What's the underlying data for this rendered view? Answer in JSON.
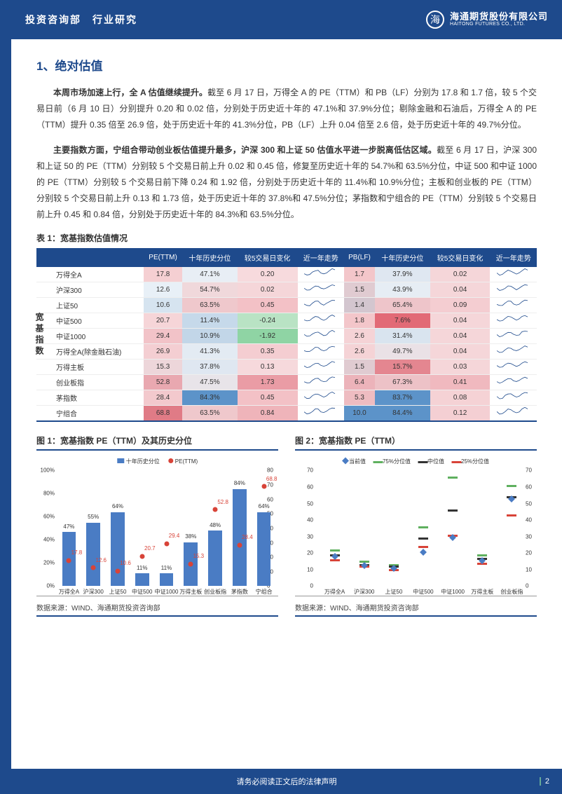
{
  "header": {
    "left": "投资咨询部　行业研究",
    "company_zh": "海通期货股份有限公司",
    "company_en": "HAITONG FUTURES CO., LTD."
  },
  "title": "1、绝对估值",
  "p1": {
    "bold": "本周市场加速上行，全 A 估值继续提升。",
    "rest": "截至 6 月 17 日，万得全 A 的 PE（TTM）和 PB（LF）分别为 17.8 和 1.7 倍，较 5 个交易日前（6 月 10 日）分别提升 0.20 和 0.02 倍，分别处于历史近十年的 47.1%和 37.9%分位；剔除金融和石油后，万得全 A 的 PE（TTM）提升 0.35 倍至 26.9 倍，处于历史近十年的 41.3%分位，PB（LF）上升 0.04 倍至 2.6 倍，处于历史近十年的 49.7%分位。"
  },
  "p2": {
    "bold": "主要指数方面，宁组合带动创业板估值提升最多，沪深 300 和上证 50 估值水平进一步脱离低估区域。",
    "rest": "截至 6 月 17 日，沪深 300 和上证 50 的 PE（TTM）分别较 5 个交易日前上升 0.02 和 0.45 倍，修复至历史近十年的 54.7%和 63.5%分位，中证 500 和中证 1000 的 PE（TTM）分别较 5 个交易日前下降 0.24 和 1.92 倍，分别处于历史近十年的 11.4%和 10.9%分位；主板和创业板的 PE（TTM）分别较 5 个交易日前上升 0.13 和 1.73 倍，处于历史近十年的 37.8%和 47.5%分位；茅指数和宁组合的 PE（TTM）分别较 5 个交易日前上升 0.45 和 0.84 倍，分别处于历史近十年的 84.3%和 63.5%分位。"
  },
  "tableTitle": "表 1：宽基指数估值情况",
  "sideLabel": "宽基指数",
  "cols": [
    "",
    "PE(TTM)",
    "十年历史分位",
    "较5交易日变化",
    "近一年走势",
    "PB(LF)",
    "十年历史分位",
    "较5交易日变化",
    "近一年走势"
  ],
  "rows": [
    {
      "name": "万得全A",
      "pe": "17.8",
      "pe_c": "#f5cfd2",
      "pr": "47.1%",
      "pr_c": "#e8eef5",
      "dpe": "0.20",
      "dpe_c": "#f7dadd",
      "pb": "1.7",
      "pb_c": "#f3c6ca",
      "pbr": "37.9%",
      "pbr_c": "#dfe7f1",
      "dpb": "0.02",
      "dpb_c": "#f5d6d9"
    },
    {
      "name": "沪深300",
      "pe": "12.6",
      "pe_c": "#e8f0f7",
      "pr": "54.7%",
      "pr_c": "#f0d8db",
      "dpe": "0.02",
      "dpe_c": "#f5d6d9",
      "pb": "1.5",
      "pb_c": "#e0cbd1",
      "pbr": "43.9%",
      "pbr_c": "#e6edf4",
      "dpb": "0.04",
      "dpb_c": "#f5d6d9"
    },
    {
      "name": "上证50",
      "pe": "10.6",
      "pe_c": "#d6e4f0",
      "pr": "63.5%",
      "pr_c": "#efc8cc",
      "dpe": "0.45",
      "dpe_c": "#f3c1c6",
      "pb": "1.4",
      "pb_c": "#d3c6cf",
      "pbr": "65.4%",
      "pbr_c": "#eec5ca",
      "dpb": "0.09",
      "dpb_c": "#f4cdd1"
    },
    {
      "name": "中证500",
      "pe": "20.7",
      "pe_c": "#f6d5d8",
      "pr": "11.4%",
      "pr_c": "#c6d9ea",
      "dpe": "-0.24",
      "dpe_c": "#b9e3c4",
      "pb": "1.8",
      "pb_c": "#f3c6ca",
      "pbr": "7.6%",
      "pbr_c": "#e26a76",
      "dpb": "0.04",
      "dpb_c": "#f5d6d9"
    },
    {
      "name": "中证1000",
      "pe": "29.4",
      "pe_c": "#f2c3c8",
      "pr": "10.9%",
      "pr_c": "#c2d6e8",
      "dpe": "-1.92",
      "dpe_c": "#8fd4a4",
      "pb": "2.6",
      "pb_c": "#f5d3d6",
      "pbr": "31.4%",
      "pbr_c": "#d9e4ef",
      "dpb": "0.04",
      "dpb_c": "#f5d6d9"
    },
    {
      "name": "万得全A(除金融石油)",
      "pe": "26.9",
      "pe_c": "#f4ced2",
      "pr": "41.3%",
      "pr_c": "#e3ebf3",
      "dpe": "0.35",
      "dpe_c": "#f4cdd1",
      "pb": "2.6",
      "pb_c": "#f5d3d6",
      "pbr": "49.7%",
      "pbr_c": "#eae1e6",
      "dpb": "0.04",
      "dpb_c": "#f5d6d9"
    },
    {
      "name": "万得主板",
      "pe": "15.3",
      "pe_c": "#edd6da",
      "pr": "37.8%",
      "pr_c": "#dfe7f1",
      "dpe": "0.13",
      "dpe_c": "#f6d9dc",
      "pb": "1.5",
      "pb_c": "#e0cbd1",
      "pbr": "15.7%",
      "pbr_c": "#e48690",
      "dpb": "0.03",
      "dpb_c": "#f5d6d9"
    },
    {
      "name": "创业板指",
      "pe": "52.8",
      "pe_c": "#e9a8b0",
      "pr": "47.5%",
      "pr_c": "#e8e4e9",
      "dpe": "1.73",
      "dpe_c": "#ea9ca5",
      "pb": "6.4",
      "pb_c": "#ecb3ba",
      "pbr": "67.3%",
      "pbr_c": "#edc2c7",
      "dpb": "0.41",
      "dpb_c": "#f0b9bf"
    },
    {
      "name": "茅指数",
      "pe": "28.4",
      "pe_c": "#f3c9cd",
      "pr": "84.3%",
      "pr_c": "#5c93c9",
      "dpe": "0.45",
      "dpe_c": "#f3c1c6",
      "pb": "5.3",
      "pb_c": "#eebcc1",
      "pbr": "83.7%",
      "pbr_c": "#5c93c9",
      "dpb": "0.08",
      "dpb_c": "#f5d2d5"
    },
    {
      "name": "宁组合",
      "pe": "68.8",
      "pe_c": "#e07b86",
      "pr": "63.5%",
      "pr_c": "#efc8cc",
      "dpe": "0.84",
      "dpe_c": "#efb4ba",
      "pb": "10.0",
      "pb_c": "#5c93c9",
      "pbr": "84.4%",
      "pbr_c": "#5c93c9",
      "dpb": "0.12",
      "dpb_c": "#f4cfd3"
    }
  ],
  "chart1": {
    "title": "图 1：宽基指数 PE（TTM）及其历史分位",
    "legend": [
      "十年历史分位",
      "PE(TTM)"
    ],
    "legend_colors": [
      "#4a7cc4",
      "#d84338"
    ],
    "y1": {
      "max": 100,
      "ticks": [
        0,
        20,
        40,
        60,
        80,
        100
      ],
      "fmt": "%"
    },
    "y2": {
      "max": 80,
      "ticks": [
        0,
        10,
        20,
        30,
        40,
        50,
        60,
        70,
        80
      ]
    },
    "cats": [
      "万得全A",
      "沪深300",
      "上证50",
      "中证500",
      "中证1000",
      "万得主板",
      "创业板指",
      "茅指数",
      "宁组合"
    ],
    "bars": [
      47,
      55,
      64,
      11,
      11,
      38,
      48,
      84,
      64
    ],
    "dots": [
      17.8,
      12.6,
      10.6,
      20.7,
      29.4,
      15.3,
      52.8,
      28.4,
      68.8
    ],
    "bar_labels": [
      "47%",
      "55%",
      "64%",
      "11%",
      "11%",
      "38%",
      "48%",
      "84%",
      "64%"
    ],
    "dot_labels": [
      "17.8",
      "12.6",
      "10.6",
      "20.7",
      "29.4",
      "15.3",
      "52.8",
      "28.4",
      "68.8"
    ]
  },
  "chart2": {
    "title": "图 2：宽基指数 PE（TTM）",
    "legend": [
      "当前值",
      "75%分位值",
      "中位值",
      "25%分位值"
    ],
    "legend_colors": [
      "#4a7cc4",
      "#5fb05f",
      "#333333",
      "#d84338"
    ],
    "ymax": 70,
    "yticks": [
      0,
      10,
      20,
      30,
      40,
      50,
      60,
      70
    ],
    "cats": [
      "万得全A",
      "沪深300",
      "上证50",
      "中证500",
      "中证1000",
      "万得主板",
      "创业板指"
    ],
    "series": [
      {
        "cur": 17.8,
        "p75": 21,
        "med": 18,
        "p25": 15
      },
      {
        "cur": 12.6,
        "p75": 14,
        "med": 12,
        "p25": 11
      },
      {
        "cur": 10.6,
        "p75": 12,
        "med": 11,
        "p25": 9
      },
      {
        "cur": 20.7,
        "p75": 35,
        "med": 28,
        "p25": 23
      },
      {
        "cur": 29.4,
        "p75": 65,
        "med": 45,
        "p25": 30
      },
      {
        "cur": 15.3,
        "p75": 18,
        "med": 16,
        "p25": 13
      },
      {
        "cur": 52.8,
        "p75": 60,
        "med": 53,
        "p25": 42
      }
    ]
  },
  "source": "数据来源：WIND、海通期货投资咨询部",
  "footer": {
    "disclaimer": "请务必阅读正文后的法律声明",
    "page": "2"
  }
}
